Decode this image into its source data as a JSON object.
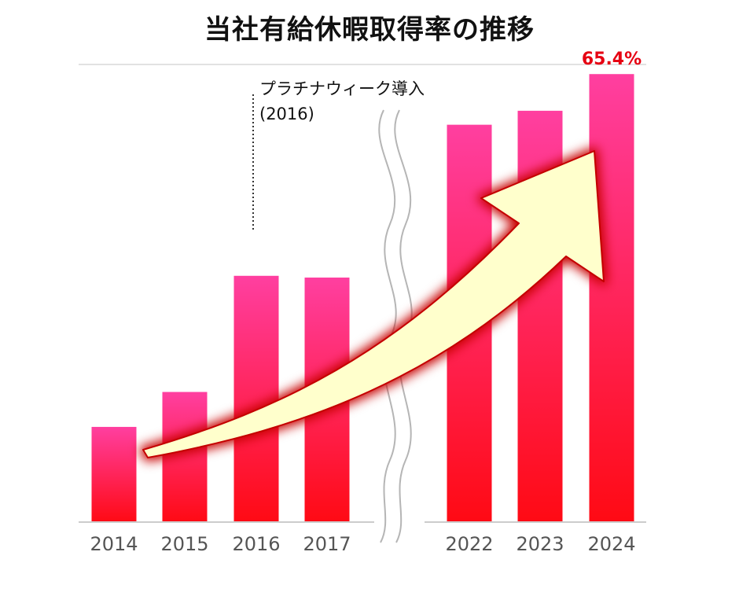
{
  "chart_data": {
    "type": "bar",
    "title": "当社有給休暇取得率の推移",
    "categories": [
      "2014",
      "2015",
      "2016",
      "2017",
      "2022",
      "2023",
      "2024"
    ],
    "values": [
      25.0,
      29.0,
      42.3,
      42.1,
      59.6,
      61.2,
      65.4
    ],
    "axis_break": {
      "after": "2017",
      "before": "2022"
    },
    "data_labels": [
      {
        "category": "2024",
        "text": "65.4%"
      }
    ],
    "annotations": [
      {
        "category": "2016",
        "lines": [
          "プラチナウィーク導入",
          "(2016)"
        ]
      }
    ],
    "trend_arrow": true,
    "colors": {
      "bar_top": "#ff3fa0",
      "bar_bottom": "#ff0a14",
      "arrow_fill": "#ffffcc",
      "arrow_glow": "#c80000",
      "axis_line": "#cccccc",
      "data_label": "#e60012"
    },
    "xlabel": "",
    "ylabel": ""
  }
}
